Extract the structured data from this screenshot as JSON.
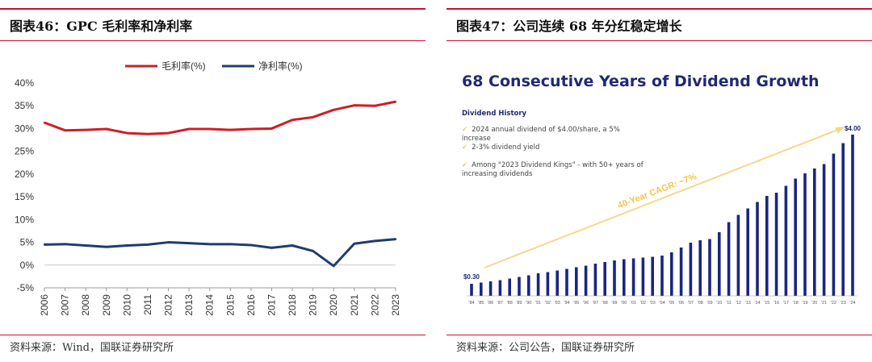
{
  "left": {
    "title": "图表46：GPC 毛利率和净利率",
    "source": "资料来源：Wind，国联证券研究所"
  },
  "right": {
    "title": "图表47：公司连续 68 年分红稳定增长",
    "source": "资料来源：公司公告，国联证券研究所",
    "image": {
      "headline": "68 Consecutive Years of Dividend Growth",
      "subheading": "Dividend History",
      "bullets": [
        "2024 annual dividend of $4.00/share, a 5% increase",
        "2-3% dividend yield",
        "Among \"2023 Dividend Kings\" - with 50+ years of increasing dividends"
      ],
      "bullet_marker": "✓",
      "cagr_label": "40-Year CAGR: ~7%"
    }
  },
  "chart_data": [
    {
      "type": "line",
      "title": "",
      "x": [
        "2006",
        "2007",
        "2008",
        "2009",
        "2010",
        "2011",
        "2012",
        "2013",
        "2014",
        "2015",
        "2016",
        "2017",
        "2018",
        "2019",
        "2020",
        "2021",
        "2022",
        "2023"
      ],
      "series": [
        {
          "name": "毛利率(%)",
          "color": "#cc1f27",
          "values": [
            31.3,
            29.6,
            29.7,
            29.9,
            29.0,
            28.8,
            29.0,
            29.9,
            29.9,
            29.7,
            29.9,
            30.0,
            31.9,
            32.5,
            34.1,
            35.1,
            35.0,
            35.9
          ]
        },
        {
          "name": "净利率(%)",
          "color": "#1f3c6e",
          "values": [
            4.5,
            4.6,
            4.3,
            4.0,
            4.3,
            4.5,
            5.0,
            4.8,
            4.6,
            4.6,
            4.4,
            3.8,
            4.3,
            3.1,
            -0.2,
            4.7,
            5.3,
            5.7
          ]
        }
      ],
      "yticks": [
        "40%",
        "35%",
        "30%",
        "25%",
        "20%",
        "15%",
        "10%",
        "5%",
        "0%",
        "-5%"
      ],
      "ylim": [
        -5,
        40
      ],
      "xlabel": "",
      "ylabel": "",
      "legend": "top"
    },
    {
      "type": "bar",
      "title": "68 Consecutive Years of Dividend Growth",
      "color": "#1b2580",
      "categories": [
        "'84",
        "'85",
        "'86",
        "'87",
        "'88",
        "'89",
        "'90",
        "'91",
        "'92",
        "'93",
        "'94",
        "'95",
        "'96",
        "'97",
        "'98",
        "'99",
        "'00",
        "'01",
        "'02",
        "'03",
        "'04",
        "'05",
        "'06",
        "'07",
        "'08",
        "'09",
        "'10",
        "'11",
        "'12",
        "'13",
        "'14",
        "'15",
        "'16",
        "'17",
        "'18",
        "'19",
        "'20",
        "'21",
        "'22",
        "'23",
        "'24"
      ],
      "values": [
        0.3,
        0.33,
        0.36,
        0.39,
        0.43,
        0.47,
        0.51,
        0.56,
        0.59,
        0.63,
        0.67,
        0.71,
        0.75,
        0.8,
        0.84,
        0.88,
        0.91,
        0.93,
        0.95,
        0.97,
        1.0,
        1.08,
        1.2,
        1.32,
        1.38,
        1.41,
        1.58,
        1.83,
        2.01,
        2.17,
        2.33,
        2.48,
        2.56,
        2.73,
        2.91,
        3.04,
        3.16,
        3.27,
        3.53,
        3.79,
        4.0
      ],
      "data_labels": {
        "first": "$0.30",
        "last": "$4.00"
      },
      "ylim": [
        0,
        4.0
      ]
    }
  ]
}
